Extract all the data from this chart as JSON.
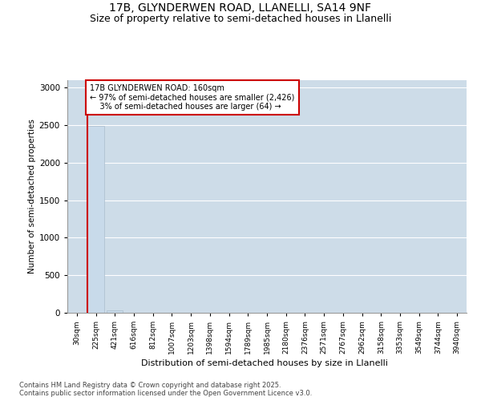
{
  "title1": "17B, GLYNDERWEN ROAD, LLANELLI, SA14 9NF",
  "title2": "Size of property relative to semi-detached houses in Llanelli",
  "xlabel": "Distribution of semi-detached houses by size in Llanelli",
  "ylabel": "Number of semi-detached properties",
  "categories": [
    "30sqm",
    "225sqm",
    "421sqm",
    "616sqm",
    "812sqm",
    "1007sqm",
    "1203sqm",
    "1398sqm",
    "1594sqm",
    "1789sqm",
    "1985sqm",
    "2180sqm",
    "2376sqm",
    "2571sqm",
    "2767sqm",
    "2962sqm",
    "3158sqm",
    "3353sqm",
    "3549sqm",
    "3744sqm",
    "3940sqm"
  ],
  "values": [
    0,
    2490,
    28,
    2,
    1,
    0,
    0,
    0,
    0,
    0,
    0,
    0,
    0,
    0,
    0,
    0,
    0,
    0,
    0,
    0,
    0
  ],
  "bar_color": "#c8daea",
  "bar_edge_color": "#aabccc",
  "property_line_color": "#cc0000",
  "annotation_text": "17B GLYNDERWEN ROAD: 160sqm\n← 97% of semi-detached houses are smaller (2,426)\n    3% of semi-detached houses are larger (64) →",
  "annotation_box_facecolor": "#ffffff",
  "annotation_box_edgecolor": "#cc0000",
  "ylim": [
    0,
    3100
  ],
  "yticks": [
    0,
    500,
    1000,
    1500,
    2000,
    2500,
    3000
  ],
  "fig_bg_color": "#ffffff",
  "plot_bg_color": "#cddce8",
  "grid_color": "#ffffff",
  "title_fontsize": 10,
  "subtitle_fontsize": 9,
  "footer_text": "Contains HM Land Registry data © Crown copyright and database right 2025.\nContains public sector information licensed under the Open Government Licence v3.0."
}
